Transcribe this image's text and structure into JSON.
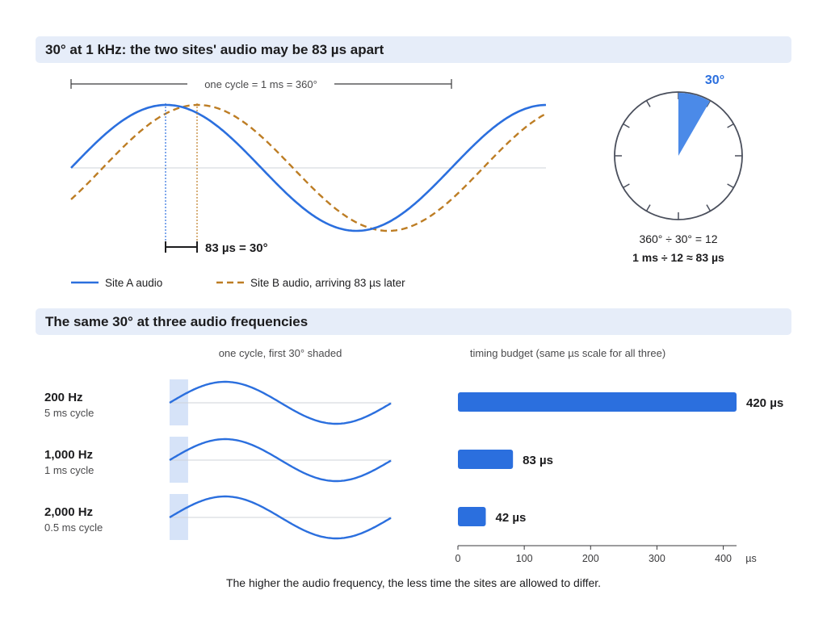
{
  "section1": {
    "title": "30° at 1 kHz: the two sites' audio may be 83 µs apart",
    "cycle_label": "one cycle = 1 ms = 360°",
    "offset_label": "83 µs = 30°",
    "legend": {
      "site_a": "Site A audio",
      "site_b": "Site B audio, arriving 83 µs later"
    },
    "colors": {
      "site_a": "#2b6fde",
      "site_b": "#bd7d24"
    },
    "dial": {
      "angle_label": "30°",
      "angle_deg": 30,
      "line1": "360° ÷ 30° = 12",
      "line2": "1 ms ÷ 12 ≈ 83 µs"
    }
  },
  "section2": {
    "title": "The same 30° at three audio frequencies",
    "wave_header": "one cycle, first 30° shaded",
    "bar_header": "timing budget (same µs scale for all three)",
    "rows": [
      {
        "freq": "200 Hz",
        "cycle": "5 ms cycle",
        "budget_us": 420,
        "budget_label": "420 µs"
      },
      {
        "freq": "1,000 Hz",
        "cycle": "1 ms cycle",
        "budget_us": 83,
        "budget_label": "83 µs"
      },
      {
        "freq": "2,000 Hz",
        "cycle": "0.5 ms cycle",
        "budget_us": 42,
        "budget_label": "42 µs"
      }
    ],
    "axis": {
      "ticks": [
        0,
        100,
        200,
        300,
        400
      ],
      "unit": "µs",
      "max": 420
    },
    "colors": {
      "bar": "#2b6fde",
      "wave": "#2b6fde",
      "shade": "#d6e3f8"
    },
    "footer": "The higher the audio frequency, the less time the sites are allowed to differ."
  }
}
